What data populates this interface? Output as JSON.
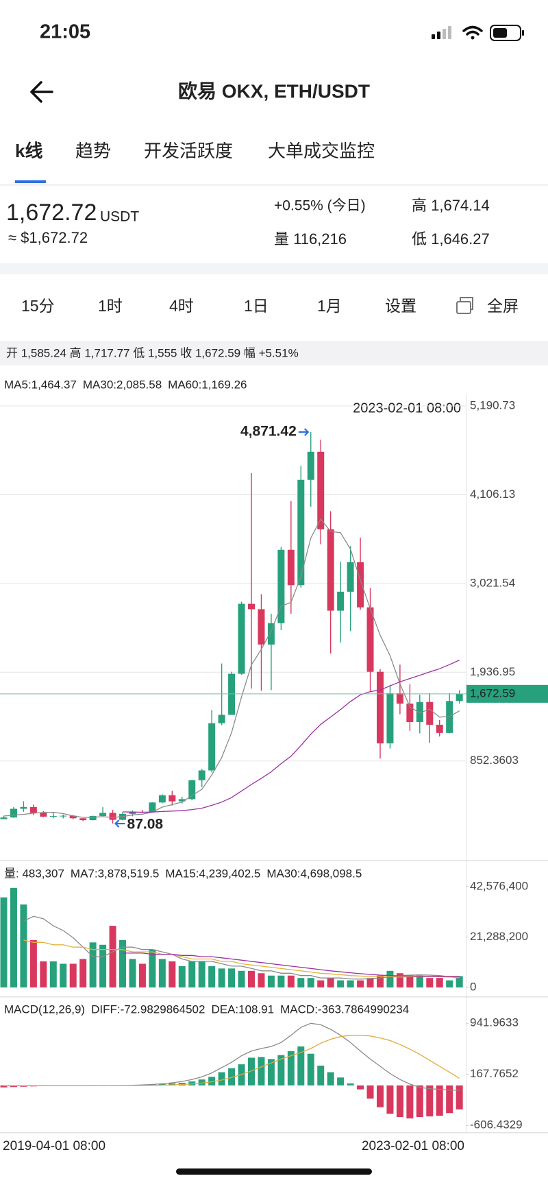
{
  "status": {
    "time": "21:05"
  },
  "header": {
    "title": "欧易 OKX, ETH/USDT"
  },
  "tabs": [
    "k线",
    "趋势",
    "开发活跃度",
    "大单成交监控"
  ],
  "ticker": {
    "price": "1,672.72",
    "unit": "USDT",
    "usd": "≈ $1,672.72",
    "change": "+0.55% (今日)",
    "high": "高 1,674.14",
    "volume": "量 116,216",
    "low": "低 1,646.27"
  },
  "periods": [
    "15分",
    "1时",
    "4时",
    "1日",
    "1月",
    "设置",
    "全屏"
  ],
  "ohlc_summary": "开 1,585.24 高 1,717.77 低 1,555 收 1,672.59 幅 +5.51%",
  "chart_data": [
    {
      "type": "candlestick",
      "categories": [
        "2019-04-01 08:00",
        null,
        null,
        null,
        null,
        null,
        null,
        null,
        null,
        null,
        null,
        null,
        null,
        null,
        null,
        null,
        null,
        null,
        null,
        null,
        null,
        null,
        null,
        null,
        null,
        null,
        null,
        null,
        null,
        null,
        null,
        null,
        null,
        null,
        null,
        null,
        null,
        null,
        null,
        null,
        null,
        null,
        null,
        null,
        null,
        null,
        "2023-02-01 08:00"
      ],
      "open": [
        141,
        162,
        268,
        290,
        218,
        172,
        180,
        183,
        152,
        129,
        180,
        218,
        133,
        206,
        231,
        225,
        345,
        434,
        359,
        386,
        617,
        737,
        1314,
        1416,
        1918,
        2773,
        2707,
        2275,
        2536,
        3433,
        3001,
        4288,
        4631,
        3683,
        2689,
        2921,
        3282,
        2730,
        1942,
        1067,
        1679,
        1553,
        1328,
        1573,
        1295,
        1195,
        1585.24
      ],
      "high": [
        184,
        288,
        361,
        320,
        240,
        224,
        198,
        194,
        153,
        184,
        288,
        253,
        227,
        247,
        253,
        348,
        445,
        488,
        415,
        623,
        755,
        1476,
        2043,
        1943,
        2798,
        4372,
        2891,
        2651,
        3468,
        4028,
        4460,
        4871.42,
        4778,
        3905,
        3286,
        3479,
        3582,
        2966,
        1974,
        1784,
        2030,
        1790,
        1662,
        1680,
        1353,
        1679,
        1717.77
      ],
      "low": [
        141,
        157,
        231,
        190,
        165,
        153,
        151,
        138,
        116,
        125,
        178,
        87.08,
        127,
        176,
        216,
        222,
        335,
        308,
        332,
        372,
        533,
        714,
        1289,
        1437,
        1904,
        1737,
        1710,
        1718,
        2451,
        2652,
        2970,
        3960,
        3500,
        2166,
        2300,
        2438,
        2700,
        1703,
        881,
        1005,
        1423,
        1220,
        1191,
        1073,
        1152,
        1190,
        1555
      ],
      "close": [
        162,
        268,
        290,
        218,
        172,
        180,
        183,
        152,
        129,
        180,
        218,
        133,
        206,
        231,
        225,
        345,
        434,
        359,
        386,
        617,
        737,
        1314,
        1416,
        1918,
        2773,
        2707,
        2275,
        2536,
        3433,
        3001,
        4288,
        4631,
        3683,
        2689,
        2921,
        3282,
        2730,
        1942,
        1067,
        1679,
        1553,
        1328,
        1573,
        1295,
        1195,
        1585,
        1672.59
      ],
      "up_color": "#27a17c",
      "down_color": "#d9385e",
      "ylim": [
        -340,
        5300
      ],
      "yticks": [
        {
          "value": 5190.73,
          "label": "5,190.73"
        },
        {
          "value": 4106.13,
          "label": "4,106.13"
        },
        {
          "value": 3021.54,
          "label": "3,021.54"
        },
        {
          "value": 1936.95,
          "label": "1,936.95"
        },
        852.3603
      ],
      "grid": true,
      "series": [
        {
          "name": "MA5:1,464.37",
          "color": "#8a8a8a",
          "values": [
            180,
            190,
            200,
            215,
            222,
            225.6,
            208.6,
            181,
            163.2,
            164.8,
            172.4,
            162.4,
            173.2,
            193.6,
            202.6,
            228,
            288.2,
            318.8,
            349.8,
            428.2,
            506.6,
            682.6,
            894,
            1200.4,
            1631.6,
            2025.6,
            2217.8,
            2441.8,
            2744.8,
            2790.4,
            3106.6,
            3577.8,
            3807.2,
            3658.4,
            3642.4,
            3441.2,
            3061,
            2712.8,
            2388.4,
            2140,
            1794.2,
            1513.8,
            1440,
            1485.6,
            1388.8,
            1395.2,
            1464.37
          ]
        },
        {
          "name": "MA30:2,085.58",
          "color": "#9c2fa6",
          "values": [
            null,
            null,
            null,
            null,
            null,
            null,
            null,
            null,
            null,
            null,
            null,
            null,
            230,
            228,
            226,
            228,
            235,
            240,
            245,
            258,
            275,
            310,
            350,
            405,
            485,
            565,
            640,
            720,
            820,
            910,
            1040,
            1180,
            1300,
            1390,
            1480,
            1580,
            1660,
            1700,
            1720,
            1770,
            1820,
            1860,
            1900,
            1940,
            1980,
            2030,
            2085.58
          ]
        },
        {
          "name": "MA60:1,169.26",
          "color": "#3b8fd4"
        }
      ],
      "current_price": {
        "value": 1672.59,
        "label": "1,672.59"
      },
      "max_label": {
        "value": 4871.42,
        "label": "4,871.42"
      },
      "min_label": 87.08
    },
    {
      "type": "bar",
      "title": "量: 483,307",
      "values": [
        38000000,
        42000000,
        35000000,
        20000000,
        11000000,
        11000000,
        10000000,
        10000000,
        12000000,
        19000000,
        18000000,
        26000000,
        20000000,
        12000000,
        10000000,
        16000000,
        12000000,
        11000000,
        9000000,
        11000000,
        11000000,
        9000000,
        8000000,
        8000000,
        7000000,
        7000000,
        6000000,
        5000000,
        5000000,
        5000000,
        4000000,
        4000000,
        3000000,
        4000000,
        3000000,
        3000000,
        3000000,
        4000000,
        5000000,
        7000000,
        6000000,
        5000000,
        5000000,
        4000000,
        4000000,
        3000000,
        4800000
      ],
      "up_color": "#27a17c",
      "down_color": "#d9385e",
      "ylim": [
        0,
        51200000
      ],
      "yticks": [
        {
          "value": 42576400,
          "label": "42,576,400"
        },
        {
          "value": 21288200,
          "label": "21,288,200"
        },
        0
      ],
      "series": [
        {
          "name": "MA7:3,878,519.5",
          "color": "#8a8a8a",
          "values": [
            null,
            null,
            28000000,
            30000000,
            29000000,
            26000000,
            24000000,
            21000000,
            17000000,
            13000000,
            13000000,
            15000000,
            17000000,
            17000000,
            16000000,
            16000000,
            15000000,
            14000000,
            12000000,
            11000000,
            11000000,
            11000000,
            10000000,
            9000000,
            9000000,
            8000000,
            7000000,
            7000000,
            6000000,
            6000000,
            5000000,
            5000000,
            4000000,
            4000000,
            4000000,
            3600000,
            3500000,
            3700000,
            4000000,
            4500000,
            5000000,
            5200000,
            5300000,
            5200000,
            5000000,
            4500000,
            3878519.5
          ]
        },
        {
          "name": "MA15:4,239,402.5",
          "color": "#e3b23c",
          "values": [
            null,
            null,
            20000000,
            19000000,
            19000000,
            18000000,
            18000000,
            17000000,
            17000000,
            16000000,
            16000000,
            16000000,
            16000000,
            15000000,
            15000000,
            15000000,
            14000000,
            14000000,
            13000000,
            12000000,
            12000000,
            12000000,
            11000000,
            11000000,
            10000000,
            9500000,
            9000000,
            8500000,
            8000000,
            7500000,
            7000000,
            6500000,
            6000000,
            5700000,
            5400000,
            5000000,
            4800000,
            4600000,
            4500000,
            4500000,
            4400000,
            4500000,
            4600000,
            4600000,
            4500000,
            4400000,
            4239402.5
          ]
        },
        {
          "name": "MA30:4,698,098.5",
          "color": "#9c2fa6",
          "values": [
            null,
            null,
            null,
            null,
            null,
            null,
            null,
            null,
            null,
            null,
            null,
            null,
            14500000,
            14500000,
            14500000,
            14000000,
            14000000,
            14000000,
            13500000,
            13500000,
            13000000,
            13000000,
            12500000,
            12000000,
            11500000,
            11000000,
            10500000,
            10000000,
            9500000,
            9000000,
            8500000,
            8000000,
            7500000,
            7000000,
            6600000,
            6200000,
            5800000,
            5500000,
            5200000,
            5000000,
            4900000,
            4800000,
            4750000,
            4700000,
            4700000,
            4690000,
            4698098.5
          ]
        }
      ]
    },
    {
      "type": "macd",
      "title": "MACD(12,26,9)",
      "values": [
        -30,
        -25,
        -20,
        -15,
        -12,
        -10,
        -8,
        -6,
        -5,
        -4,
        -3,
        -2,
        3,
        6,
        10,
        15,
        20,
        30,
        40,
        60,
        90,
        130,
        200,
        260,
        320,
        420,
        430,
        400,
        460,
        520,
        590,
        480,
        300,
        200,
        120,
        30,
        -60,
        -200,
        -330,
        -430,
        -480,
        -500,
        -480,
        -470,
        -460,
        -420,
        -363.79
      ],
      "value_name": "MACD:-363.7864990234",
      "up_color": "#27a17c",
      "down_color": "#d9385e",
      "ylim": [
        -698,
        1194
      ],
      "yticks": [
        941.9633,
        167.7652,
        -606.4329
      ],
      "series": [
        {
          "name": "DIFF:-72.9829864502",
          "color": "#8a8a8a",
          "values": [
            -5,
            -5,
            -6,
            -6,
            -6,
            -5,
            -5,
            -4,
            -4,
            -3,
            -3,
            -3,
            -2,
            3,
            8,
            15,
            25,
            40,
            60,
            90,
            130,
            190,
            270,
            350,
            450,
            520,
            560,
            590,
            650,
            760,
            880,
            941,
            920,
            850,
            760,
            650,
            520,
            400,
            290,
            180,
            90,
            20,
            -30,
            -50,
            -60,
            -70,
            -72.98
          ]
        },
        {
          "name": "DEA:108.91",
          "color": "#e3a83a",
          "values": [
            -3,
            -3,
            -4,
            -4,
            -4,
            -4,
            -4,
            -4,
            -4,
            -3,
            -3,
            -3,
            -3,
            -2,
            -1,
            1,
            4,
            8,
            14,
            23,
            36,
            55,
            82,
            120,
            165,
            220,
            280,
            340,
            400,
            450,
            500,
            560,
            640,
            700,
            740,
            760,
            760,
            750,
            720,
            680,
            620,
            550,
            470,
            380,
            290,
            200,
            108.91
          ]
        }
      ]
    }
  ]
}
